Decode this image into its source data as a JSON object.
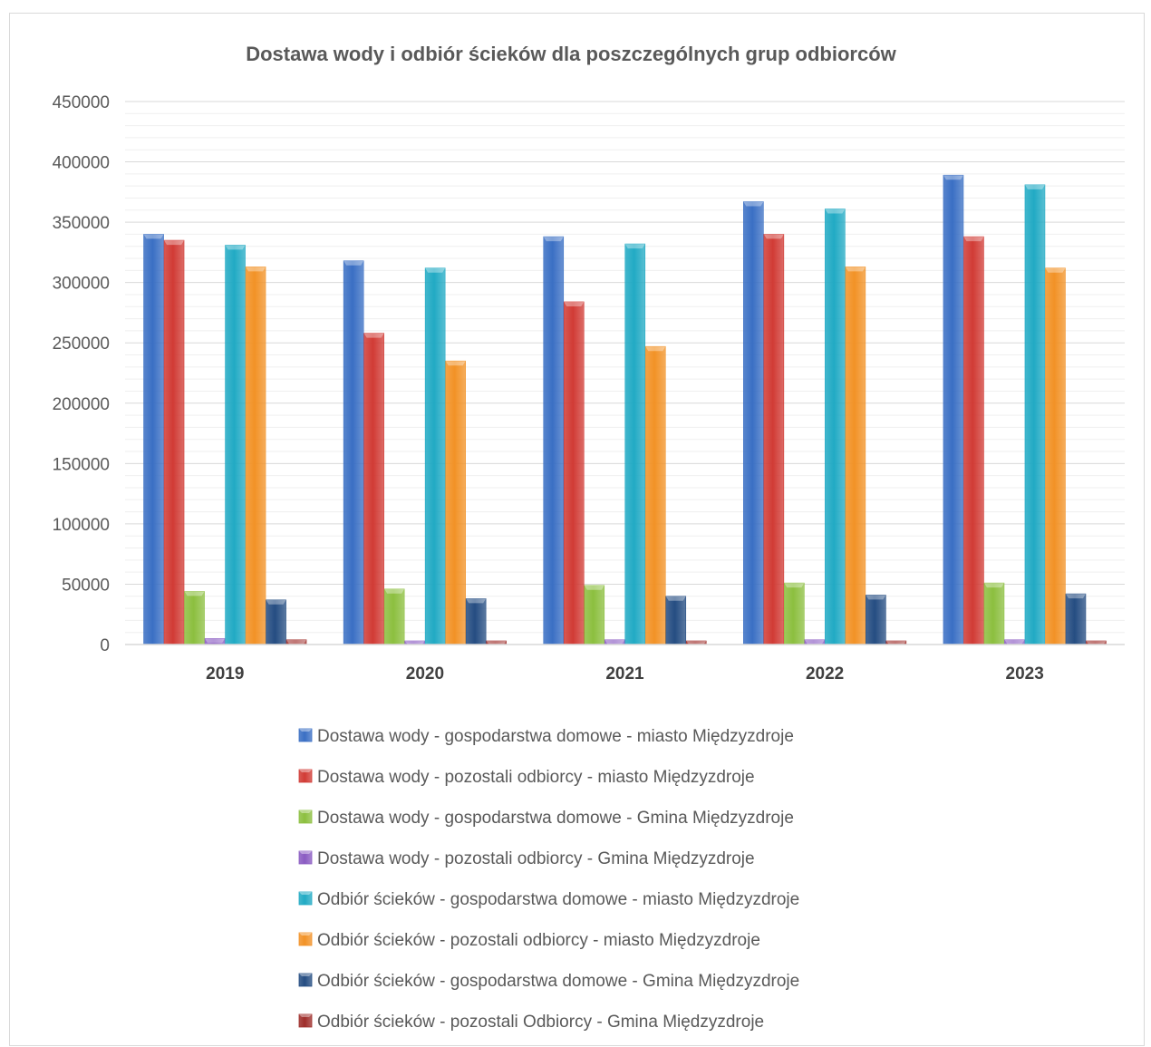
{
  "chart_data": {
    "type": "bar",
    "title": "Dostawa wody i odbiór ścieków dla poszczególnych grup odbiorców",
    "categories": [
      "2019",
      "2020",
      "2021",
      "2022",
      "2023"
    ],
    "ylim": [
      0,
      450000
    ],
    "yticks": [
      0,
      50000,
      100000,
      150000,
      200000,
      250000,
      300000,
      350000,
      400000,
      450000
    ],
    "ytick_labels": [
      "0",
      "50000",
      "100000",
      "150000",
      "200000",
      "250000",
      "300000",
      "350000",
      "400000",
      "450000"
    ],
    "grid": true,
    "legend_position": "bottom",
    "series": [
      {
        "name": "Dostawa wody - gospodarstwa domowe - miasto Międzyzdroje",
        "color": "#3a6fc4",
        "values": [
          340000,
          318000,
          338000,
          367000,
          389000
        ]
      },
      {
        "name": "Dostawa wody - pozostali odbiorcy  - miasto Międzyzdroje",
        "color": "#d13b35",
        "values": [
          335000,
          258000,
          284000,
          340000,
          338000
        ]
      },
      {
        "name": "Dostawa wody - gospodarstwa domowe - Gmina Międzyzdroje",
        "color": "#8cbf3f",
        "values": [
          44000,
          46000,
          49000,
          51000,
          51000
        ]
      },
      {
        "name": "Dostawa wody - pozostali odbiorcy  - Gmina  Międzyzdroje",
        "color": "#8a5bc2",
        "values": [
          5000,
          3000,
          4000,
          4000,
          4000
        ]
      },
      {
        "name": "Odbiór ścieków - gospodarstwa domowe - miasto Międzyzdroje",
        "color": "#21aac4",
        "values": [
          331000,
          312000,
          332000,
          361000,
          381000
        ]
      },
      {
        "name": "Odbiór ścieków  - pozostali odbiorcy  - miasto Międzyzdroje",
        "color": "#f29226",
        "values": [
          313000,
          235000,
          247000,
          313000,
          312000
        ]
      },
      {
        "name": "Odbiór ścieków - gospodarstwa domowe - Gmina Międzyzdroje",
        "color": "#254d82",
        "values": [
          37000,
          38000,
          40000,
          41000,
          42000
        ]
      },
      {
        "name": "Odbiór ścieków  - pozostali Odbiorcy  - Gmina  Międzyzdroje",
        "color": "#9e2d2a",
        "values": [
          4000,
          3000,
          3000,
          3000,
          3000
        ]
      }
    ]
  }
}
